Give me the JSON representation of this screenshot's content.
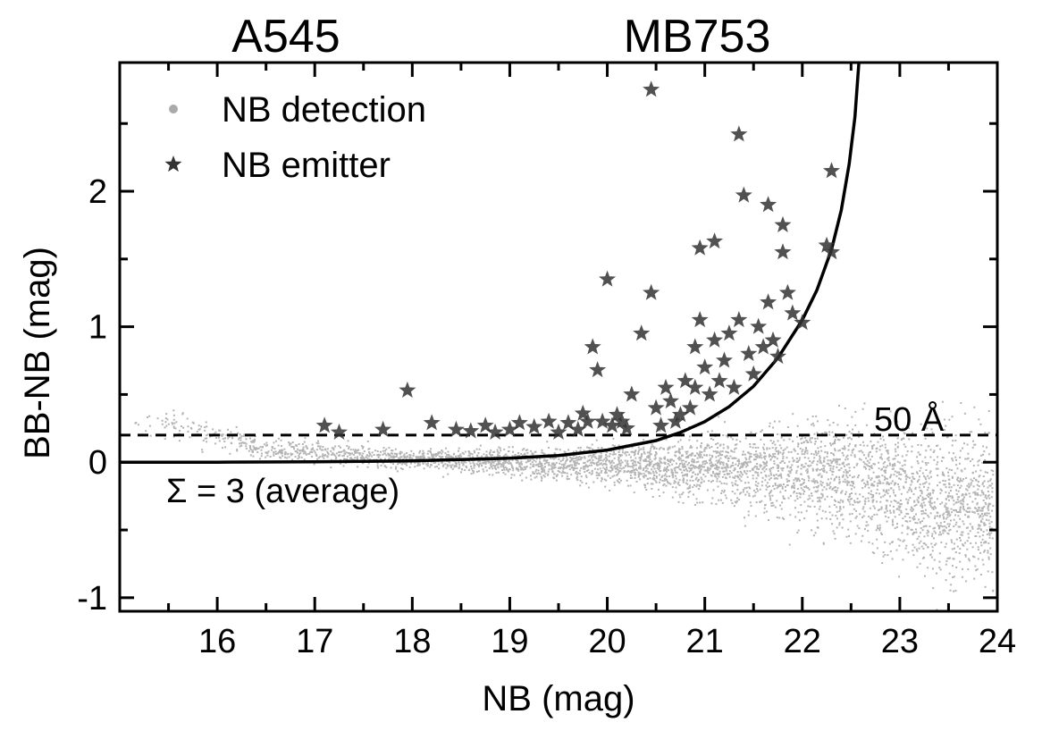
{
  "chart_data": {
    "type": "scatter",
    "titles": [
      "A545",
      "MB753"
    ],
    "xlabel": "NB (mag)",
    "ylabel": "BB-NB (mag)",
    "xlim": [
      15.0,
      24.0
    ],
    "ylim": [
      -1.1,
      2.95
    ],
    "xticks": [
      16,
      17,
      18,
      19,
      20,
      21,
      22,
      23,
      24
    ],
    "yticks": [
      -1,
      0,
      1,
      2
    ],
    "x_minor_ticks": [
      15.5,
      16.5,
      17.5,
      18.5,
      19.5,
      20.5,
      21.5,
      22.5,
      23.5
    ],
    "y_minor_ticks": [
      -0.5,
      0.5,
      1.5,
      2.5
    ],
    "legend": {
      "position": "top-left",
      "entries": [
        {
          "label": "NB detection",
          "marker": "dot",
          "color": "#aaaaaa"
        },
        {
          "label": "NB emitter",
          "marker": "star",
          "color": "#333333"
        }
      ]
    },
    "annotations": {
      "ew_line_label": "50 Å",
      "sigma_curve_label": "Σ = 3 (average)"
    },
    "reference_lines": {
      "ew_cut_y": 0.2,
      "sigma_curve": [
        {
          "x": 15.0,
          "y": 0.0
        },
        {
          "x": 16.0,
          "y": 0.0
        },
        {
          "x": 17.0,
          "y": 0.003
        },
        {
          "x": 18.0,
          "y": 0.01
        },
        {
          "x": 18.5,
          "y": 0.02
        },
        {
          "x": 19.0,
          "y": 0.03
        },
        {
          "x": 19.5,
          "y": 0.05
        },
        {
          "x": 20.0,
          "y": 0.09
        },
        {
          "x": 20.5,
          "y": 0.16
        },
        {
          "x": 20.75,
          "y": 0.22
        },
        {
          "x": 21.0,
          "y": 0.3
        },
        {
          "x": 21.25,
          "y": 0.41
        },
        {
          "x": 21.5,
          "y": 0.56
        },
        {
          "x": 21.75,
          "y": 0.77
        },
        {
          "x": 22.0,
          "y": 1.05
        },
        {
          "x": 22.15,
          "y": 1.27
        },
        {
          "x": 22.3,
          "y": 1.57
        },
        {
          "x": 22.4,
          "y": 1.86
        },
        {
          "x": 22.48,
          "y": 2.2
        },
        {
          "x": 22.54,
          "y": 2.55
        },
        {
          "x": 22.58,
          "y": 2.95
        }
      ]
    },
    "series": [
      {
        "name": "NB emitter",
        "marker": "star",
        "points": [
          {
            "x": 17.1,
            "y": 0.27
          },
          {
            "x": 17.25,
            "y": 0.22
          },
          {
            "x": 17.7,
            "y": 0.24
          },
          {
            "x": 17.95,
            "y": 0.53
          },
          {
            "x": 18.2,
            "y": 0.29
          },
          {
            "x": 18.45,
            "y": 0.24
          },
          {
            "x": 18.6,
            "y": 0.23
          },
          {
            "x": 18.75,
            "y": 0.27
          },
          {
            "x": 18.85,
            "y": 0.22
          },
          {
            "x": 19.0,
            "y": 0.24
          },
          {
            "x": 19.1,
            "y": 0.29
          },
          {
            "x": 19.25,
            "y": 0.26
          },
          {
            "x": 19.4,
            "y": 0.3
          },
          {
            "x": 19.5,
            "y": 0.22
          },
          {
            "x": 19.6,
            "y": 0.29
          },
          {
            "x": 19.7,
            "y": 0.24
          },
          {
            "x": 19.75,
            "y": 0.36
          },
          {
            "x": 19.8,
            "y": 0.3
          },
          {
            "x": 19.85,
            "y": 0.85
          },
          {
            "x": 19.9,
            "y": 0.68
          },
          {
            "x": 19.95,
            "y": 0.3
          },
          {
            "x": 20.0,
            "y": 1.35
          },
          {
            "x": 20.05,
            "y": 0.27
          },
          {
            "x": 20.1,
            "y": 0.35
          },
          {
            "x": 20.15,
            "y": 0.3
          },
          {
            "x": 20.2,
            "y": 0.25
          },
          {
            "x": 20.25,
            "y": 0.5
          },
          {
            "x": 20.35,
            "y": 0.95
          },
          {
            "x": 20.45,
            "y": 1.25
          },
          {
            "x": 20.45,
            "y": 2.75
          },
          {
            "x": 20.5,
            "y": 0.4
          },
          {
            "x": 20.55,
            "y": 0.27
          },
          {
            "x": 20.6,
            "y": 0.55
          },
          {
            "x": 20.65,
            "y": 0.45
          },
          {
            "x": 20.7,
            "y": 0.3
          },
          {
            "x": 20.75,
            "y": 0.35
          },
          {
            "x": 20.8,
            "y": 0.6
          },
          {
            "x": 20.85,
            "y": 0.4
          },
          {
            "x": 20.9,
            "y": 0.55
          },
          {
            "x": 20.9,
            "y": 0.85
          },
          {
            "x": 20.95,
            "y": 1.05
          },
          {
            "x": 20.95,
            "y": 1.58
          },
          {
            "x": 21.0,
            "y": 0.7
          },
          {
            "x": 21.05,
            "y": 0.5
          },
          {
            "x": 21.1,
            "y": 0.9
          },
          {
            "x": 21.1,
            "y": 1.63
          },
          {
            "x": 21.15,
            "y": 0.6
          },
          {
            "x": 21.2,
            "y": 0.75
          },
          {
            "x": 21.25,
            "y": 0.95
          },
          {
            "x": 21.3,
            "y": 0.55
          },
          {
            "x": 21.35,
            "y": 2.42
          },
          {
            "x": 21.35,
            "y": 1.05
          },
          {
            "x": 21.4,
            "y": 1.97
          },
          {
            "x": 21.45,
            "y": 0.8
          },
          {
            "x": 21.5,
            "y": 0.65
          },
          {
            "x": 21.55,
            "y": 1.0
          },
          {
            "x": 21.6,
            "y": 0.85
          },
          {
            "x": 21.65,
            "y": 1.9
          },
          {
            "x": 21.65,
            "y": 1.18
          },
          {
            "x": 21.7,
            "y": 0.9
          },
          {
            "x": 21.75,
            "y": 0.78
          },
          {
            "x": 21.8,
            "y": 1.75
          },
          {
            "x": 21.8,
            "y": 1.55
          },
          {
            "x": 21.85,
            "y": 1.25
          },
          {
            "x": 21.9,
            "y": 1.1
          },
          {
            "x": 22.0,
            "y": 1.03
          },
          {
            "x": 22.25,
            "y": 1.6
          },
          {
            "x": 22.3,
            "y": 2.15
          },
          {
            "x": 22.3,
            "y": 1.55
          }
        ]
      },
      {
        "name": "NB detection",
        "marker": "dot",
        "description_points": "dense cloud; mean near 0, spread widening at faint NB",
        "envelope": [
          {
            "x": 15.5,
            "center": 0.3,
            "spread": 0.08
          },
          {
            "x": 16.5,
            "center": 0.1,
            "spread": 0.06
          },
          {
            "x": 18.0,
            "center": 0.03,
            "spread": 0.05
          },
          {
            "x": 19.5,
            "center": 0.0,
            "spread": 0.08
          },
          {
            "x": 20.5,
            "center": -0.02,
            "spread": 0.12
          },
          {
            "x": 21.5,
            "center": -0.05,
            "spread": 0.2
          },
          {
            "x": 22.5,
            "center": -0.1,
            "spread": 0.3
          },
          {
            "x": 23.5,
            "center": -0.3,
            "spread": 0.4
          }
        ]
      }
    ]
  }
}
